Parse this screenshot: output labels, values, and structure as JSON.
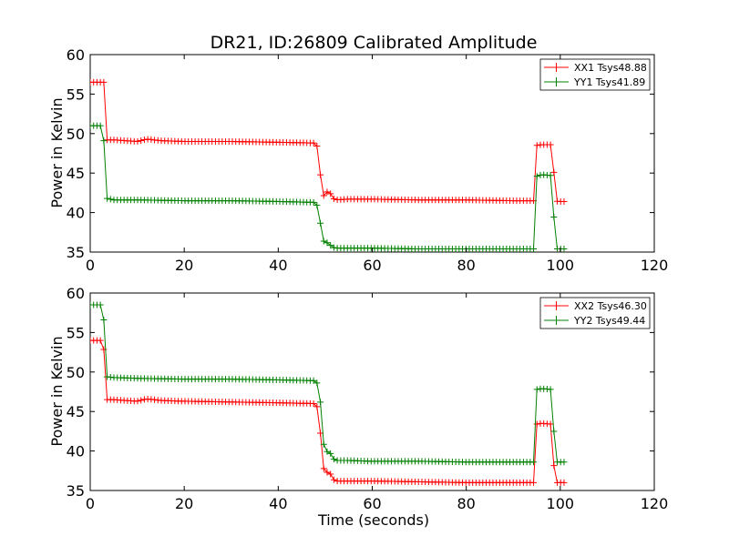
{
  "chart_data": [
    {
      "type": "line",
      "title": "DR21, ID:26809 Calibrated Amplitude",
      "xlabel": "",
      "ylabel": "Power in Kelvin",
      "xlim": [
        0,
        120
      ],
      "ylim": [
        35,
        60
      ],
      "xticks": [
        "0",
        "20",
        "40",
        "60",
        "80",
        "100",
        "120"
      ],
      "yticks": [
        "35",
        "40",
        "45",
        "50",
        "55",
        "60"
      ],
      "legend_position": "top-right",
      "grid": false,
      "series": [
        {
          "name": "XX1 Tsys48.88",
          "color": "#ff0000",
          "x": [
            0,
            3,
            3.5,
            5,
            10,
            12,
            15,
            20,
            30,
            40,
            48,
            48.5,
            49,
            49.5,
            50,
            50.5,
            51,
            52,
            55,
            60,
            70,
            80,
            90,
            94.5,
            95,
            96,
            98,
            98.5,
            99,
            99.5,
            101
          ],
          "y": [
            56.5,
            56.5,
            49.2,
            49.2,
            49.0,
            49.3,
            49.1,
            49.0,
            49.0,
            48.9,
            48.8,
            48.0,
            44.5,
            42.5,
            41.5,
            42.9,
            42.5,
            41.6,
            41.7,
            41.7,
            41.6,
            41.6,
            41.5,
            41.5,
            48.5,
            48.6,
            48.6,
            46.5,
            41.5,
            41.4,
            41.4
          ]
        },
        {
          "name": "YY1 Tsys41.89",
          "color": "#008000",
          "x": [
            0,
            2.5,
            3,
            3.5,
            5,
            10,
            20,
            30,
            40,
            47,
            48,
            48.5,
            49,
            49.5,
            50,
            50.5,
            51,
            52,
            55,
            60,
            70,
            80,
            90,
            94.5,
            95,
            96,
            98,
            98.5,
            99,
            99.5,
            101
          ],
          "y": [
            51.0,
            51.0,
            48.5,
            41.8,
            41.6,
            41.6,
            41.5,
            41.5,
            41.4,
            41.3,
            41.3,
            40.5,
            38.5,
            37.0,
            35.3,
            36.4,
            35.9,
            35.5,
            35.5,
            35.5,
            35.4,
            35.4,
            35.4,
            35.4,
            44.6,
            44.8,
            44.7,
            41.0,
            35.4,
            35.4,
            35.4
          ]
        }
      ]
    },
    {
      "type": "line",
      "title": "",
      "xlabel": "Time (seconds)",
      "ylabel": "Power in Kelvin",
      "xlim": [
        0,
        120
      ],
      "ylim": [
        35,
        60
      ],
      "xticks": [
        "0",
        "20",
        "40",
        "60",
        "80",
        "100",
        "120"
      ],
      "yticks": [
        "35",
        "40",
        "45",
        "50",
        "55",
        "60"
      ],
      "legend_position": "top-right",
      "grid": false,
      "series": [
        {
          "name": "XX2 Tsys46.30",
          "color": "#ff0000",
          "x": [
            0,
            2.5,
            3,
            3.5,
            5,
            10,
            12,
            15,
            20,
            30,
            40,
            48,
            48.5,
            49,
            49.5,
            50,
            50.5,
            51,
            52,
            55,
            60,
            70,
            80,
            90,
            94.5,
            95,
            96,
            98,
            98.5,
            99,
            99.5,
            101
          ],
          "y": [
            54.0,
            54.0,
            52.5,
            46.5,
            46.5,
            46.3,
            46.6,
            46.4,
            46.3,
            46.2,
            46.1,
            46.0,
            45.2,
            42.0,
            38.5,
            36.5,
            37.5,
            37.2,
            36.2,
            36.2,
            36.2,
            36.1,
            36.0,
            36.0,
            36.0,
            43.4,
            43.5,
            43.4,
            39.0,
            36.0,
            36.0,
            36.0
          ],
          "note": ""
        },
        {
          "name": "YY2 Tsys49.44",
          "color": "#008000",
          "x": [
            0,
            2.5,
            3,
            3.5,
            5,
            10,
            20,
            30,
            40,
            48,
            48.5,
            49,
            49.5,
            50,
            50.5,
            51,
            52,
            55,
            60,
            70,
            80,
            90,
            94.5,
            95,
            96,
            98,
            98.5,
            99,
            99.5,
            101
          ],
          "y": [
            58.5,
            58.5,
            56.0,
            49.4,
            49.3,
            49.2,
            49.1,
            49.1,
            49.0,
            48.9,
            48.3,
            46.0,
            42.0,
            38.8,
            40.2,
            39.8,
            38.8,
            38.8,
            38.7,
            38.7,
            38.6,
            38.6,
            38.6,
            47.8,
            47.9,
            47.8,
            44.0,
            38.6,
            38.6,
            38.6
          ]
        }
      ]
    }
  ]
}
